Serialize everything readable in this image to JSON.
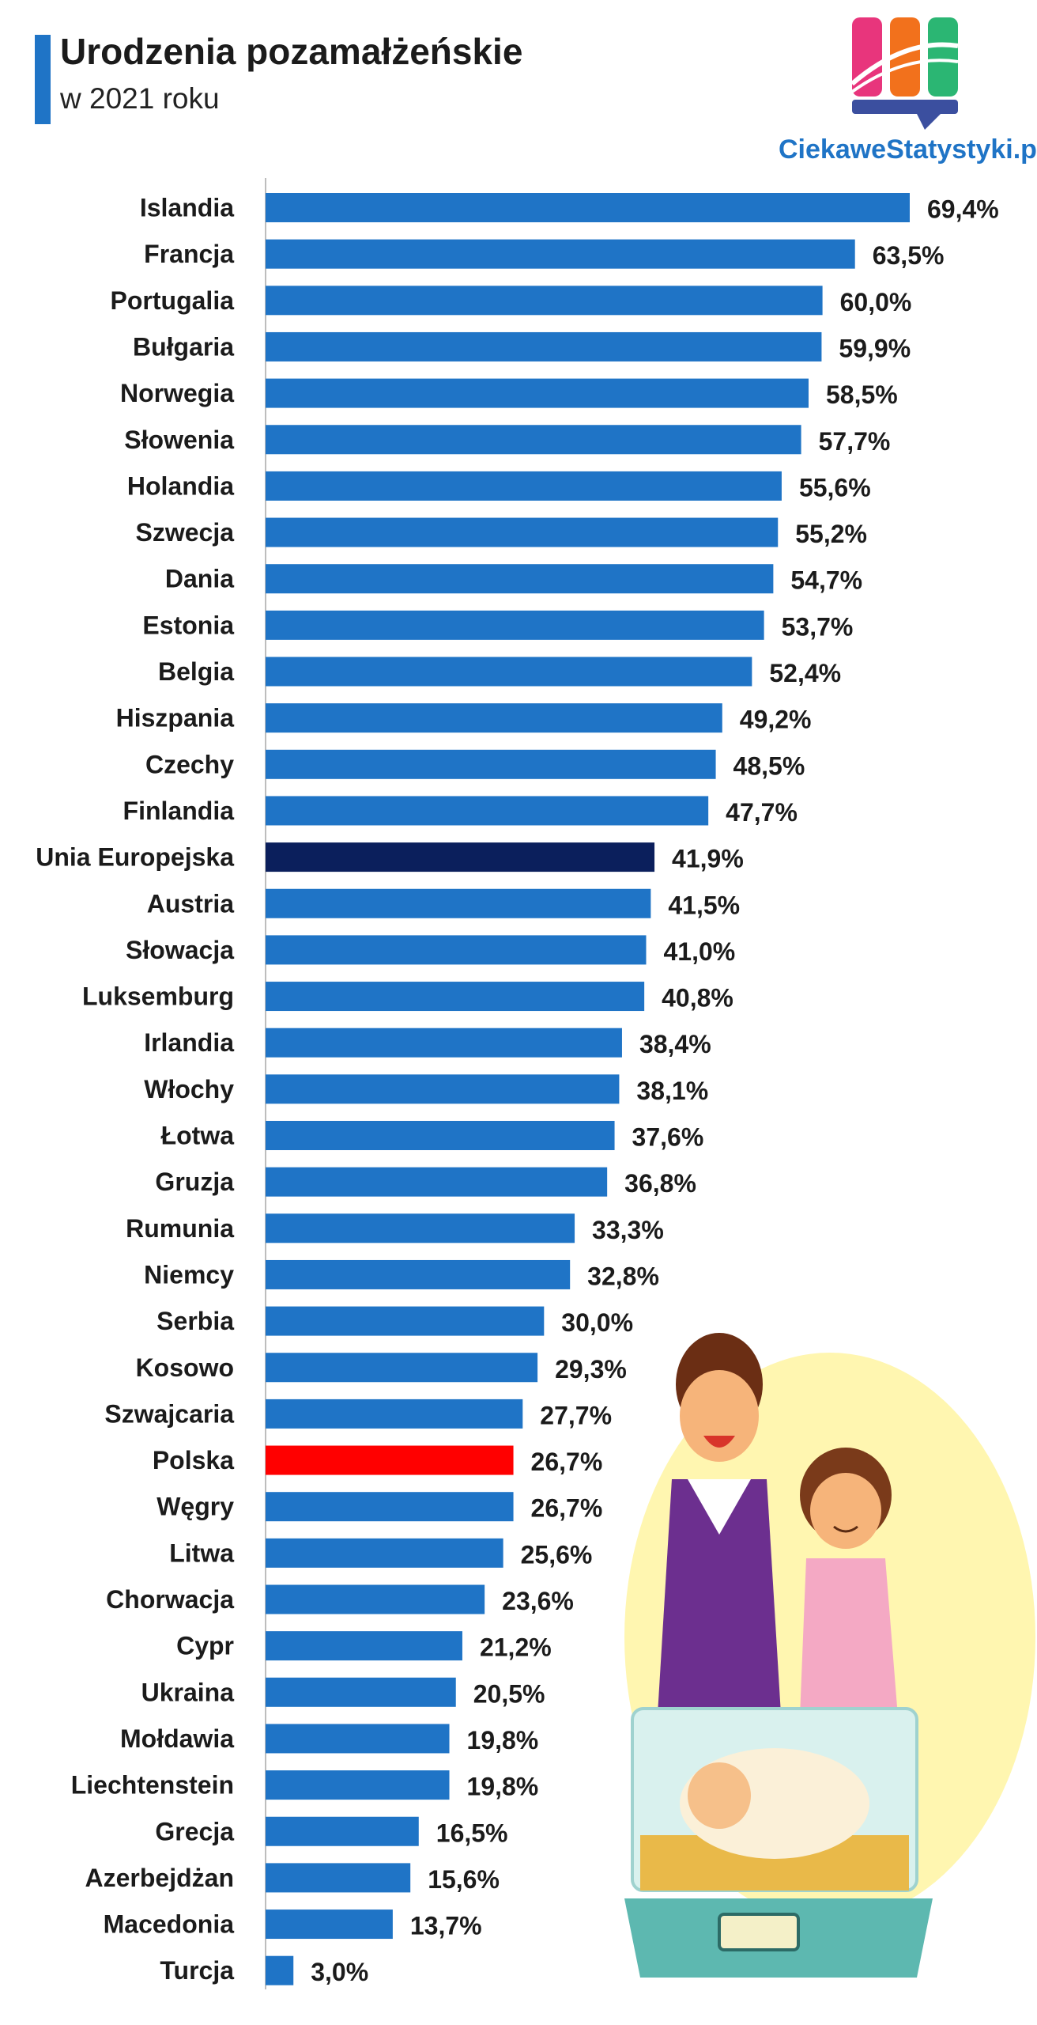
{
  "title": "Urodzenia pozamałżeńskie",
  "subtitle": "w 2021 roku",
  "brand": "CiekaweStatystyki.pl",
  "icons": {
    "logo": "ciekawestatystyki-logo",
    "illustration": "parents-with-newborn-in-incubator"
  },
  "colors": {
    "bar": "#1f74c6",
    "eu": "#0b1f5c",
    "poland": "#ff0000",
    "accent": "#1f74c6"
  },
  "chart_data": {
    "type": "bar",
    "orientation": "horizontal",
    "title": "Urodzenia pozamałżeńskie",
    "subtitle": "w 2021 roku",
    "xlabel": "",
    "ylabel": "",
    "xlim": [
      0,
      69.4
    ],
    "grid": false,
    "categories": [
      "Islandia",
      "Francja",
      "Portugalia",
      "Bułgaria",
      "Norwegia",
      "Słowenia",
      "Holandia",
      "Szwecja",
      "Dania",
      "Estonia",
      "Belgia",
      "Hiszpania",
      "Czechy",
      "Finlandia",
      "Unia Europejska",
      "Austria",
      "Słowacja",
      "Luksemburg",
      "Irlandia",
      "Włochy",
      "Łotwa",
      "Gruzja",
      "Rumunia",
      "Niemcy",
      "Serbia",
      "Kosowo",
      "Szwajcaria",
      "Polska",
      "Węgry",
      "Litwa",
      "Chorwacja",
      "Cypr",
      "Ukraina",
      "Mołdawia",
      "Liechtenstein",
      "Grecja",
      "Azerbejdżan",
      "Macedonia",
      "Turcja"
    ],
    "values": [
      69.4,
      63.5,
      60.0,
      59.9,
      58.5,
      57.7,
      55.6,
      55.2,
      54.7,
      53.7,
      52.4,
      49.2,
      48.5,
      47.7,
      41.9,
      41.5,
      41.0,
      40.8,
      38.4,
      38.1,
      37.6,
      36.8,
      33.3,
      32.8,
      30.0,
      29.3,
      27.7,
      26.7,
      26.7,
      25.6,
      23.6,
      21.2,
      20.5,
      19.8,
      19.8,
      16.5,
      15.6,
      13.7,
      3.0
    ],
    "value_labels": [
      "69,4%",
      "63,5%",
      "60,0%",
      "59,9%",
      "58,5%",
      "57,7%",
      "55,6%",
      "55,2%",
      "54,7%",
      "53,7%",
      "52,4%",
      "49,2%",
      "48,5%",
      "47,7%",
      "41,9%",
      "41,5%",
      "41,0%",
      "40,8%",
      "38,4%",
      "38,1%",
      "37,6%",
      "36,8%",
      "33,3%",
      "32,8%",
      "30,0%",
      "29,3%",
      "27,7%",
      "26,7%",
      "26,7%",
      "25,6%",
      "23,6%",
      "21,2%",
      "20,5%",
      "19,8%",
      "19,8%",
      "16,5%",
      "15,6%",
      "13,7%",
      "3,0%"
    ],
    "highlights": {
      "Unia Europejska": "#0b1f5c",
      "Polska": "#ff0000"
    }
  }
}
